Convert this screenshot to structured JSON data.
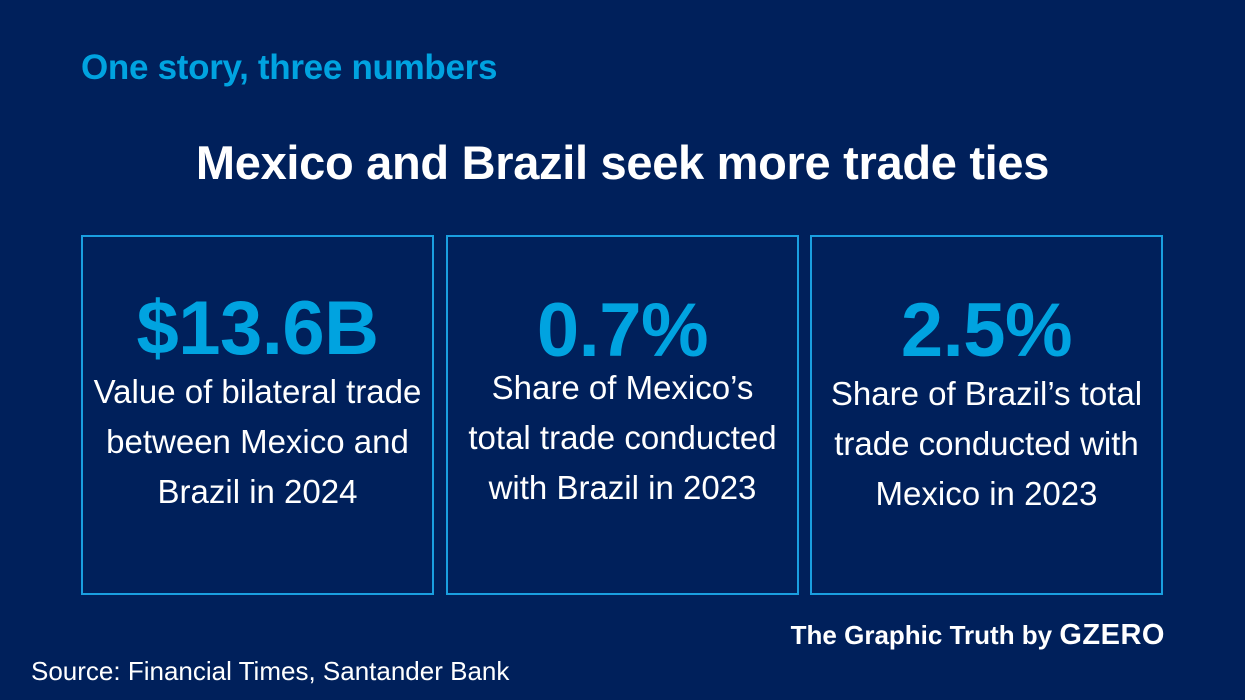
{
  "kicker": "One story, three numbers",
  "title": "Mexico and Brazil seek more trade ties",
  "cards": [
    {
      "value": "$13.6B",
      "description": "Value of bilateral trade between Mexico and Brazil in 2024"
    },
    {
      "value": "0.7%",
      "description": "Share of Mexico’s total trade conducted with Brazil in 2023"
    },
    {
      "value": "2.5%",
      "description": "Share of Brazil’s total trade conducted with Mexico in 2023"
    }
  ],
  "footer": {
    "brand_prefix": "The Graphic Truth by ",
    "brand_name": "GZERO",
    "source": "Source: Financial Times, Santander Bank"
  },
  "colors": {
    "background": "#00205b",
    "accent": "#00a3e0",
    "text": "#ffffff"
  }
}
